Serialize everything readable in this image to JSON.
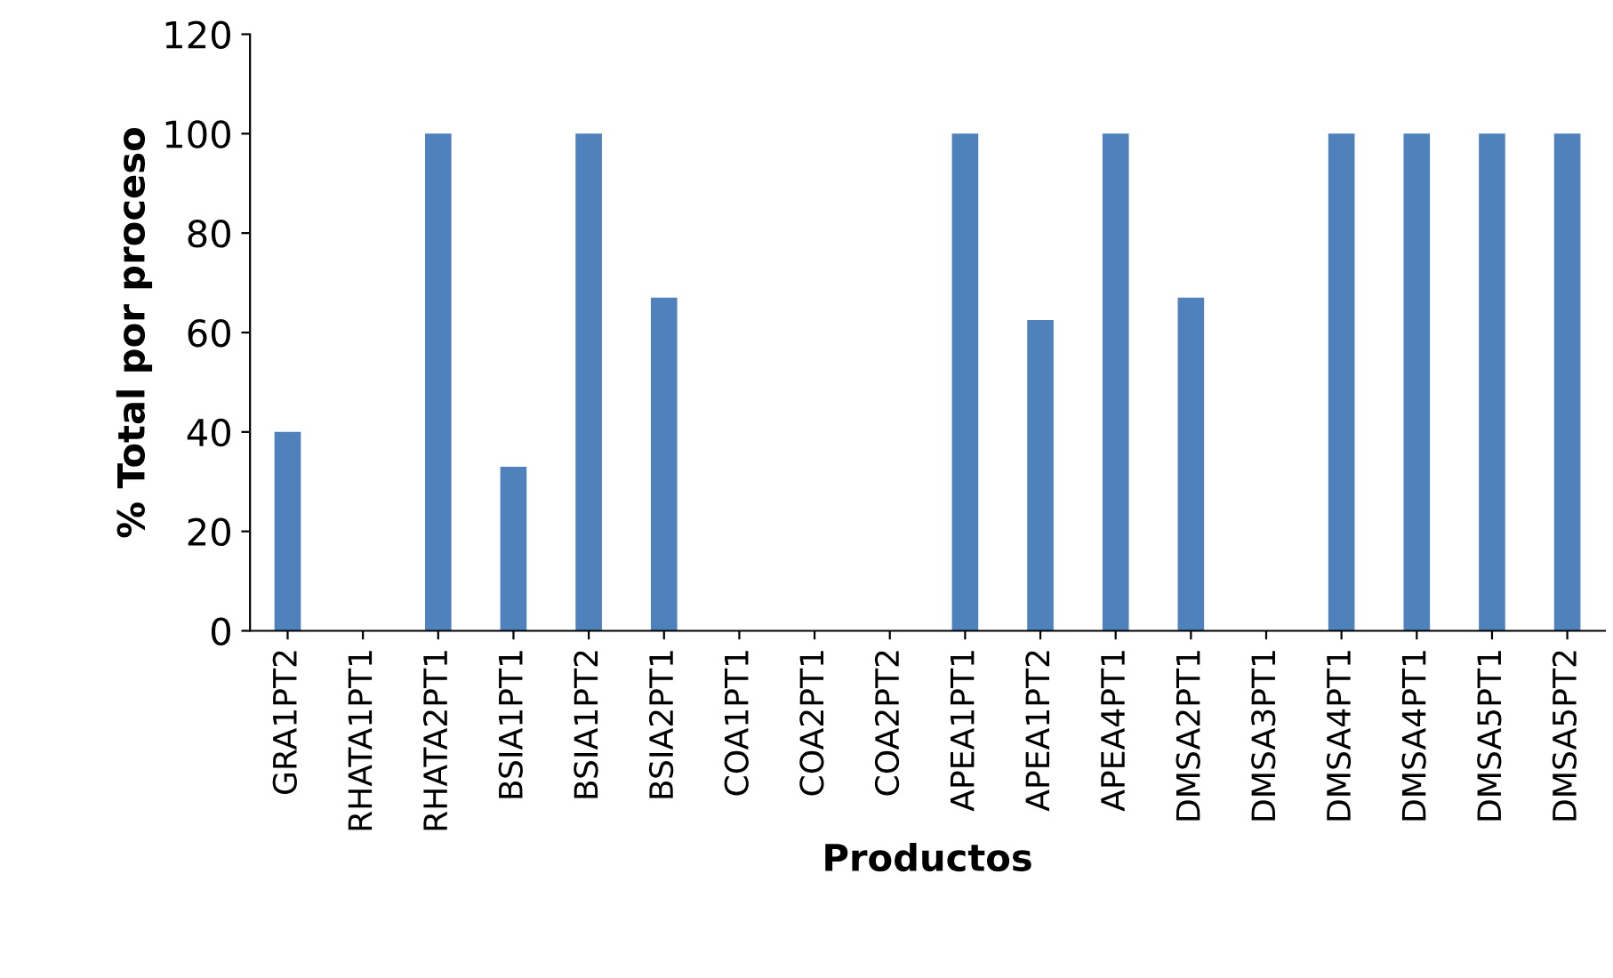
{
  "chart_data": {
    "type": "bar",
    "xlabel": "Productos",
    "ylabel": "% Total por proceso",
    "categories": [
      "GRA1PT2",
      "RHATA1PT1",
      "RHATA2PT1",
      "BSIA1PT1",
      "BSIA1PT2",
      "BSIA2PT1",
      "COA1PT1",
      "COA2PT1",
      "COA2PT2",
      "APEA1PT1",
      "APEA1PT2",
      "APEA4PT1",
      "DMSA2PT1",
      "DMSA3PT1",
      "DMSA4PT1",
      "DMSA4PT1",
      "DMSA5PT1",
      "DMSA5PT2"
    ],
    "values": [
      40,
      0,
      100,
      33,
      100,
      67,
      0,
      0,
      0,
      100,
      62.5,
      100,
      67,
      0,
      100,
      100,
      100,
      100
    ],
    "color": "#4f81bd",
    "ylim": [
      0,
      120
    ],
    "yticks": [
      0,
      20,
      40,
      60,
      80,
      100,
      120
    ],
    "grid": false,
    "legend": false
  }
}
